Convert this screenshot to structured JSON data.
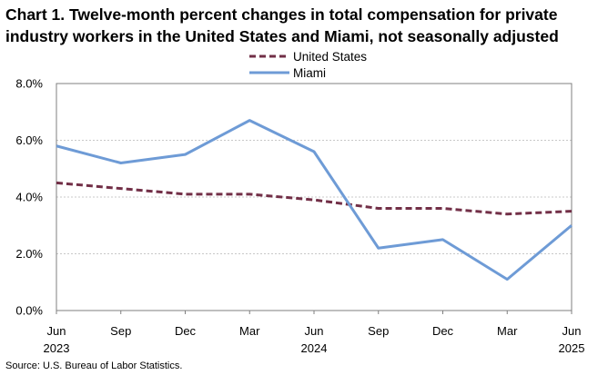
{
  "chart_data": {
    "type": "line",
    "title_line1": "Chart 1. Twelve-month percent changes in total compensation for private",
    "title_line2": "industry workers in the United States and Miami, not seasonally adjusted",
    "categories": [
      "Jun",
      "Sep",
      "Dec",
      "Mar",
      "Jun",
      "Sep",
      "Dec",
      "Mar",
      "Jun"
    ],
    "year_labels": [
      {
        "index": 0,
        "label": "2023"
      },
      {
        "index": 4,
        "label": "2024"
      },
      {
        "index": 8,
        "label": "2025"
      }
    ],
    "series": [
      {
        "name": "United States",
        "color": "#722F47",
        "style": "dashed",
        "values": [
          4.5,
          4.3,
          4.1,
          4.1,
          3.9,
          3.6,
          3.6,
          3.4,
          3.5
        ]
      },
      {
        "name": "Miami",
        "color": "#6E9BD6",
        "style": "solid",
        "values": [
          5.8,
          5.2,
          5.5,
          6.7,
          5.6,
          2.2,
          2.5,
          1.1,
          3.0
        ]
      }
    ],
    "yticks": [
      "0.0%",
      "2.0%",
      "4.0%",
      "6.0%",
      "8.0%"
    ],
    "ylim": [
      0,
      8
    ],
    "ytick_step": 2,
    "grid": true,
    "legend_position": "top-center",
    "source": "Source: U.S. Bureau of Labor Statistics."
  }
}
